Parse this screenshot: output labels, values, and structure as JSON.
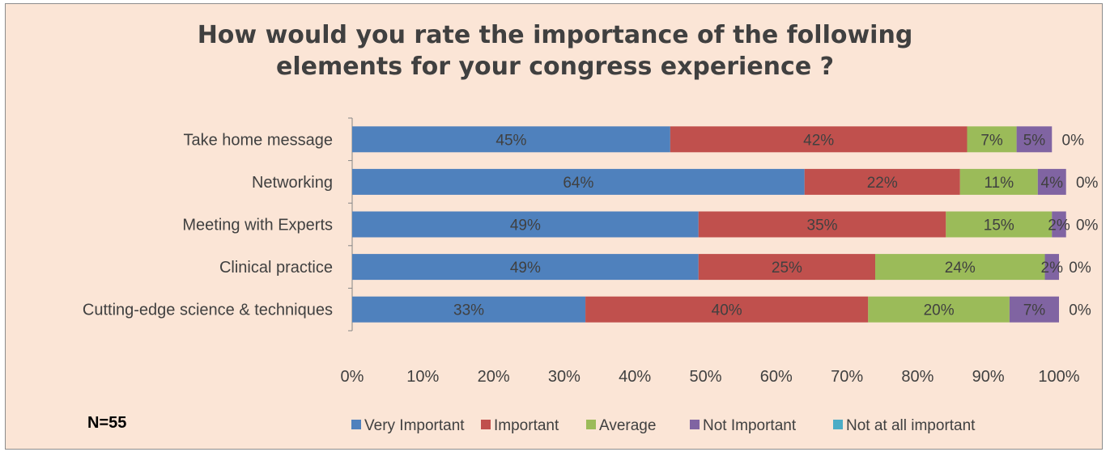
{
  "chart_data": {
    "type": "bar",
    "orientation": "horizontal",
    "stacked": true,
    "title": "How would you rate the importance of the following elements for your congress experience ?",
    "title_lines": [
      "How would you rate the importance of the following",
      "elements for your congress experience ?"
    ],
    "note": "N=55",
    "categories": [
      "Take home message",
      "Networking",
      "Meeting with Experts",
      "Clinical practice",
      "Cutting-edge science & techniques"
    ],
    "xlim": [
      0,
      100
    ],
    "x_ticks": [
      "0%",
      "10%",
      "20%",
      "30%",
      "40%",
      "50%",
      "60%",
      "70%",
      "80%",
      "90%",
      "100%"
    ],
    "grid": false,
    "legend_position": "bottom",
    "series": [
      {
        "name": "Very Important",
        "color": "#4f81bd",
        "values": [
          45,
          64,
          49,
          49,
          33
        ],
        "labels": [
          "45%",
          "64%",
          "49%",
          "49%",
          "33%"
        ]
      },
      {
        "name": "Important",
        "color": "#c0504d",
        "values": [
          42,
          22,
          35,
          25,
          40
        ],
        "labels": [
          "42%",
          "22%",
          "35%",
          "25%",
          "40%"
        ]
      },
      {
        "name": "Average",
        "color": "#9bbb59",
        "values": [
          7,
          11,
          15,
          24,
          20
        ],
        "labels": [
          "7%",
          "11%",
          "15%",
          "24%",
          "20%"
        ]
      },
      {
        "name": "Not Important",
        "color": "#8064a2",
        "values": [
          5,
          4,
          2,
          2,
          7
        ],
        "labels": [
          "5%",
          "4%",
          "2%",
          "2%",
          "7%"
        ]
      },
      {
        "name": "Not at all important",
        "color": "#4bacc6",
        "values": [
          0,
          0,
          0,
          0,
          0
        ],
        "labels": [
          "0%",
          "0%",
          "0%",
          "0%",
          "0%"
        ]
      }
    ]
  }
}
